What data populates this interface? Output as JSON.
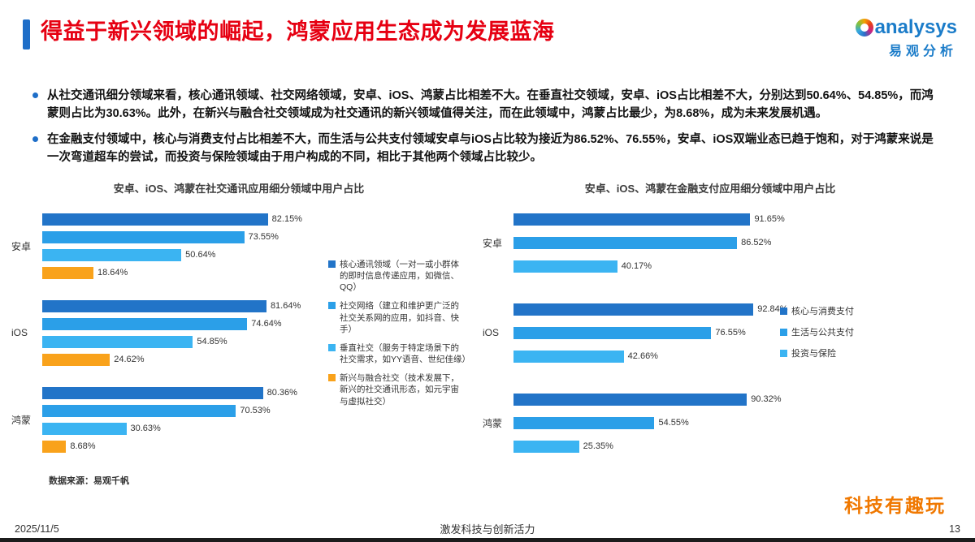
{
  "header": {
    "title": "得益于新兴领域的崛起，鸿蒙应用生态成为发展蓝海",
    "logo_text": "analysys",
    "logo_subtext": "易观分析"
  },
  "bullets": [
    "从社交通讯细分领域来看，核心通讯领域、社交网络领域，安卓、iOS、鸿蒙占比相差不大。在垂直社交领域，安卓、iOS占比相差不大，分别达到50.64%、54.85%，而鸿蒙则占比为30.63%。此外，在新兴与融合社交领域成为社交通讯的新兴领域值得关注，而在此领域中，鸿蒙占比最少，为8.68%，成为未来发展机遇。",
    "在金融支付领域中，核心与消费支付占比相差不大，而生活与公共支付领域安卓与iOS占比较为接近为86.52%、76.55%，安卓、iOS双端业态已趋于饱和，对于鸿蒙来说是一次弯道超车的尝试，而投资与保险领域由于用户构成的不同，相比于其他两个领域占比较少。"
  ],
  "source": "数据来源：易观千帆",
  "footer": {
    "date": "2025/11/5",
    "slogan": "激发科技与创新活力",
    "page_number": "13",
    "watermark": "科技有趣玩"
  },
  "colors": {
    "accent_blue": "#1E6EC8",
    "title_red": "#E60012",
    "series_dark_blue": "#2274C8",
    "series_mid_blue": "#2B9FE8",
    "series_light_blue": "#3BB4F2",
    "series_orange": "#F9A21B",
    "watermark_orange": "#F07800"
  },
  "chart_data": [
    {
      "type": "bar",
      "orientation": "horizontal",
      "title": "安卓、iOS、鸿蒙在社交通讯应用细分领域中用户占比",
      "categories": [
        "安卓",
        "iOS",
        "鸿蒙"
      ],
      "xlim": [
        0,
        100
      ],
      "value_suffix": "%",
      "grid": false,
      "legend_position": "right",
      "series": [
        {
          "name": "核心通讯领域（一对一或小群体的即时信息传递应用，如微信、QQ）",
          "color": "#2274C8",
          "values": [
            82.15,
            81.64,
            80.36
          ]
        },
        {
          "name": "社交网络（建立和维护更广泛的社交关系网的应用，如抖音、快手）",
          "color": "#2B9FE8",
          "values": [
            73.55,
            74.64,
            70.53
          ]
        },
        {
          "name": "垂直社交（服务于特定场景下的社交需求，如YY语音、世纪佳缘）",
          "color": "#3BB4F2",
          "values": [
            50.64,
            54.85,
            30.63
          ]
        },
        {
          "name": "新兴与融合社交（技术发展下，新兴的社交通讯形态，如元宇宙与虚拟社交）",
          "color": "#F9A21B",
          "values": [
            18.64,
            24.62,
            8.68
          ]
        }
      ]
    },
    {
      "type": "bar",
      "orientation": "horizontal",
      "title": "安卓、iOS、鸿蒙在金融支付应用细分领域中用户占比",
      "categories": [
        "安卓",
        "iOS",
        "鸿蒙"
      ],
      "xlim": [
        0,
        100
      ],
      "value_suffix": "%",
      "grid": false,
      "legend_position": "right",
      "series": [
        {
          "name": "核心与消费支付",
          "color": "#2274C8",
          "values": [
            91.65,
            92.84,
            90.32
          ]
        },
        {
          "name": "生活与公共支付",
          "color": "#2B9FE8",
          "values": [
            86.52,
            76.55,
            54.55
          ]
        },
        {
          "name": "投资与保险",
          "color": "#3BB4F2",
          "values": [
            40.17,
            42.66,
            25.35
          ]
        }
      ]
    }
  ]
}
